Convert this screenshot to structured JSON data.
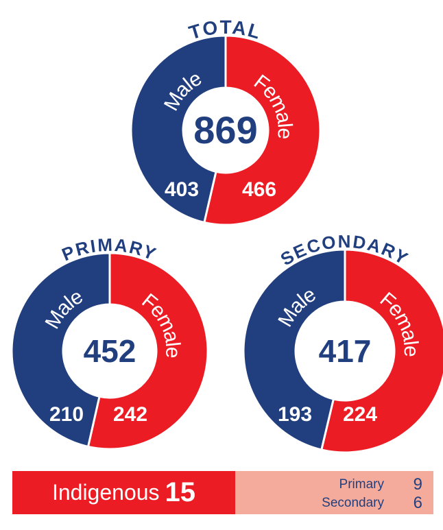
{
  "chart_data": [
    {
      "type": "donut",
      "title": "TOTAL",
      "total": 869,
      "categories": [
        "Male",
        "Female"
      ],
      "values": [
        403,
        466
      ],
      "colors": [
        "#213f7e",
        "#ec1c24"
      ]
    },
    {
      "type": "donut",
      "title": "PRIMARY",
      "total": 452,
      "categories": [
        "Male",
        "Female"
      ],
      "values": [
        210,
        242
      ],
      "colors": [
        "#213f7e",
        "#ec1c24"
      ]
    },
    {
      "type": "donut",
      "title": "SECONDARY",
      "total": 417,
      "categories": [
        "Male",
        "Female"
      ],
      "values": [
        193,
        224
      ],
      "colors": [
        "#213f7e",
        "#ec1c24"
      ]
    }
  ],
  "indigenous": {
    "label": "Indigenous",
    "value": 15,
    "breakdown": [
      {
        "label": "Primary",
        "value": 9
      },
      {
        "label": "Secondary",
        "value": 6
      }
    ]
  }
}
